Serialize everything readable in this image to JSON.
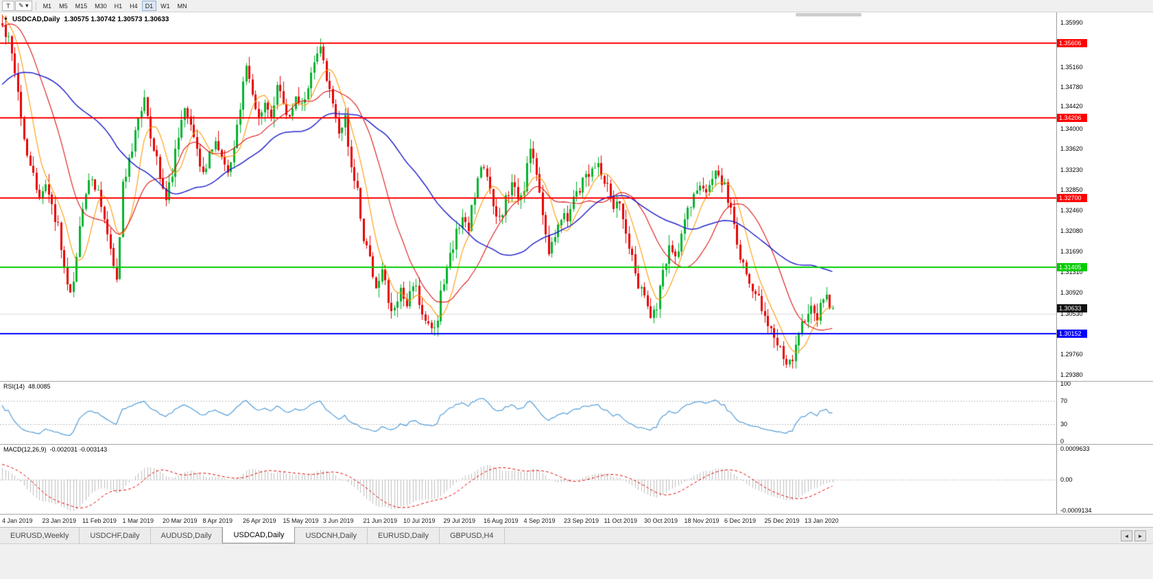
{
  "window_title": "USDCAD,Daily",
  "toolbar": {
    "tools": [
      {
        "id": "text-tool",
        "glyph": "T"
      },
      {
        "id": "drawing-tools",
        "glyph": "✎",
        "dropdown": "▾"
      }
    ],
    "timeframes": [
      "M1",
      "M5",
      "M15",
      "M30",
      "H1",
      "H4",
      "D1",
      "W1",
      "MN"
    ],
    "active_timeframe": "D1"
  },
  "chart_data": {
    "type": "candlestick",
    "symbol": "USDCAD",
    "period": "Daily",
    "title": {
      "menu_glyph": "▼",
      "symbol": "USDCAD,Daily",
      "quote": "1.30575 1.30742 1.30573 1.30633"
    },
    "open": "1.30575",
    "high": "1.30742",
    "low": "1.30573",
    "close": "1.30633",
    "up_color": "#00b22c",
    "down_color": "#e60000",
    "price_axis_ticks": [
      "1.35990",
      "1.35160",
      "1.34780",
      "1.34420",
      "1.34000",
      "1.33620",
      "1.33230",
      "1.32850",
      "1.32460",
      "1.32080",
      "1.31690",
      "1.31310",
      "1.30920",
      "1.30530",
      "1.29760",
      "1.29380"
    ],
    "hlines": [
      {
        "price": 1.35606,
        "label": "1.35606",
        "color": "#ff0000"
      },
      {
        "price": 1.34206,
        "label": "1.34206",
        "color": "#ff0000"
      },
      {
        "price": 1.327,
        "label": "1.32700",
        "color": "#ff0000"
      },
      {
        "price": 1.31405,
        "label": "1.31405",
        "color": "#00cc00"
      },
      {
        "price": 1.30152,
        "label": "1.30152",
        "color": "#0000ff"
      }
    ],
    "grid_line": {
      "price": 1.3053,
      "color": "#dadada"
    },
    "current_price_tag": {
      "label": "1.30633",
      "price": 1.30633,
      "color": "#111111"
    },
    "moving_averages": [
      {
        "name": "fast",
        "color": "#ff9800"
      },
      {
        "name": "medium",
        "color": "#dd1111"
      },
      {
        "name": "slow",
        "color": "#2323cc"
      }
    ],
    "dates": [
      "4 Jan 2019",
      "23 Jan 2019",
      "11 Feb 2019",
      "1 Mar 2019",
      "20 Mar 2019",
      "8 Apr 2019",
      "26 Apr 2019",
      "15 May 2019",
      "3 Jun 2019",
      "21 Jun 2019",
      "10 Jul 2019",
      "29 Jul 2019",
      "16 Aug 2019",
      "4 Sep 2019",
      "23 Sep 2019",
      "11 Oct 2019",
      "30 Oct 2019",
      "18 Nov 2019",
      "6 Dec 2019",
      "25 Dec 2019",
      "13 Jan 2020"
    ],
    "waypoints": [
      [
        0,
        1.359
      ],
      [
        2,
        1.3565
      ],
      [
        4,
        1.35
      ],
      [
        7,
        1.339
      ],
      [
        9,
        1.333
      ],
      [
        12,
        1.327
      ],
      [
        14,
        1.329
      ],
      [
        16,
        1.325
      ],
      [
        18,
        1.322
      ],
      [
        20,
        1.313
      ],
      [
        22,
        1.3082
      ],
      [
        24,
        1.316
      ],
      [
        26,
        1.325
      ],
      [
        28,
        1.33
      ],
      [
        31,
        1.329
      ],
      [
        33,
        1.324
      ],
      [
        35,
        1.317
      ],
      [
        37,
        1.311
      ],
      [
        39,
        1.33
      ],
      [
        41,
        1.334
      ],
      [
        44,
        1.342
      ],
      [
        46,
        1.345
      ],
      [
        48,
        1.339
      ],
      [
        50,
        1.334
      ],
      [
        53,
        1.326
      ],
      [
        55,
        1.332
      ],
      [
        57,
        1.338
      ],
      [
        59,
        1.344
      ],
      [
        61,
        1.34
      ],
      [
        63,
        1.336
      ],
      [
        65,
        1.332
      ],
      [
        67,
        1.335
      ],
      [
        69,
        1.338
      ],
      [
        71,
        1.334
      ],
      [
        73,
        1.331
      ],
      [
        75,
        1.336
      ],
      [
        77,
        1.344
      ],
      [
        79,
        1.352
      ],
      [
        81,
        1.347
      ],
      [
        83,
        1.342
      ],
      [
        85,
        1.346
      ],
      [
        87,
        1.343
      ],
      [
        89,
        1.348
      ],
      [
        91,
        1.345
      ],
      [
        93,
        1.342
      ],
      [
        95,
        1.347
      ],
      [
        97,
        1.344
      ],
      [
        99,
        1.348
      ],
      [
        101,
        1.352
      ],
      [
        103,
        1.3548
      ],
      [
        105,
        1.35
      ],
      [
        107,
        1.345
      ],
      [
        109,
        1.34
      ],
      [
        111,
        1.342
      ],
      [
        113,
        1.333
      ],
      [
        115,
        1.328
      ],
      [
        117,
        1.319
      ],
      [
        119,
        1.315
      ],
      [
        121,
        1.31
      ],
      [
        123,
        1.313
      ],
      [
        125,
        1.308
      ],
      [
        127,
        1.306
      ],
      [
        129,
        1.309
      ],
      [
        131,
        1.306
      ],
      [
        133,
        1.311
      ],
      [
        135,
        1.308
      ],
      [
        137,
        1.304
      ],
      [
        139,
        1.3025
      ],
      [
        141,
        1.305
      ],
      [
        143,
        1.312
      ],
      [
        145,
        1.316
      ],
      [
        147,
        1.321
      ],
      [
        149,
        1.324
      ],
      [
        151,
        1.322
      ],
      [
        153,
        1.328
      ],
      [
        155,
        1.333
      ],
      [
        157,
        1.33
      ],
      [
        159,
        1.326
      ],
      [
        161,
        1.323
      ],
      [
        163,
        1.327
      ],
      [
        165,
        1.33
      ],
      [
        167,
        1.326
      ],
      [
        169,
        1.329
      ],
      [
        171,
        1.337
      ],
      [
        173,
        1.331
      ],
      [
        175,
        1.323
      ],
      [
        177,
        1.316
      ],
      [
        179,
        1.32
      ],
      [
        181,
        1.324
      ],
      [
        183,
        1.322
      ],
      [
        185,
        1.326
      ],
      [
        187,
        1.329
      ],
      [
        190,
        1.332
      ],
      [
        193,
        1.333
      ],
      [
        196,
        1.329
      ],
      [
        198,
        1.324
      ],
      [
        200,
        1.327
      ],
      [
        202,
        1.321
      ],
      [
        204,
        1.316
      ],
      [
        206,
        1.311
      ],
      [
        208,
        1.308
      ],
      [
        210,
        1.305
      ],
      [
        212,
        1.307
      ],
      [
        214,
        1.313
      ],
      [
        216,
        1.317
      ],
      [
        218,
        1.315
      ],
      [
        220,
        1.32
      ],
      [
        222,
        1.324
      ],
      [
        224,
        1.327
      ],
      [
        226,
        1.33
      ],
      [
        228,
        1.328
      ],
      [
        230,
        1.331
      ],
      [
        232,
        1.332
      ],
      [
        234,
        1.329
      ],
      [
        236,
        1.325
      ],
      [
        238,
        1.318
      ],
      [
        240,
        1.315
      ],
      [
        242,
        1.312
      ],
      [
        244,
        1.309
      ],
      [
        246,
        1.306
      ],
      [
        248,
        1.303
      ],
      [
        250,
        1.3
      ],
      [
        252,
        1.298
      ],
      [
        254,
        1.2955
      ],
      [
        256,
        1.297
      ],
      [
        258,
        1.301
      ],
      [
        260,
        1.3045
      ],
      [
        262,
        1.3075
      ],
      [
        264,
        1.3048
      ],
      [
        266,
        1.3085
      ],
      [
        269,
        1.3063
      ]
    ],
    "forced_wicks": [
      [
        46,
        "high",
        1.3467
      ],
      [
        79,
        "high",
        1.3522
      ],
      [
        103,
        "high",
        1.356
      ],
      [
        139,
        "low",
        1.3017
      ],
      [
        171,
        "high",
        1.3381
      ],
      [
        254,
        "low",
        1.2951
      ]
    ],
    "rsi": {
      "name": "RSI(14)",
      "value": "48.0085",
      "axis": [
        "100",
        "70",
        "30",
        "0"
      ],
      "levels": [
        70,
        30
      ],
      "color": "#4f9bd8"
    },
    "macd": {
      "name": "MACD(12,26,9)",
      "value": "-0.002031 -0.003143",
      "axis": [
        "0.0009633",
        "0.00",
        "-0.0009134"
      ],
      "histogram_color": "#bdbdbd",
      "signal_color": "#e60000"
    }
  },
  "tabs": {
    "items": [
      "EURUSD,Weekly",
      "USDCHF,Daily",
      "AUDUSD,Daily",
      "USDCAD,Daily",
      "USDCNH,Daily",
      "EURUSD,Daily",
      "GBPUSD,H4"
    ],
    "active": "USDCAD,Daily",
    "scroll_left": "◄",
    "scroll_right": "►"
  }
}
